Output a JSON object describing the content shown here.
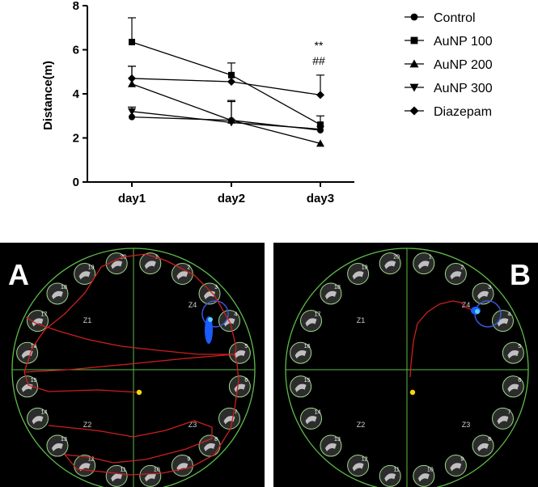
{
  "chart_data": {
    "type": "line",
    "title": "",
    "ylabel": "Distance(m)",
    "xlabel": "",
    "categories": [
      "day1",
      "day2",
      "day3"
    ],
    "ylim": [
      0,
      8
    ],
    "yticks": [
      0,
      2,
      4,
      6,
      8
    ],
    "legend_position": "right",
    "series": [
      {
        "name": "Control",
        "marker": "circle",
        "values": [
          2.95,
          2.8,
          2.35
        ],
        "errors": [
          0.0,
          0.0,
          0.0
        ]
      },
      {
        "name": "AuNP 100",
        "marker": "square",
        "values": [
          6.35,
          4.85,
          2.6
        ],
        "errors": [
          1.1,
          0.55,
          0.0
        ]
      },
      {
        "name": "AuNP 200",
        "marker": "triangle-up",
        "values": [
          4.45,
          2.8,
          1.75
        ],
        "errors": [
          0.8,
          0.9,
          0.0
        ]
      },
      {
        "name": "AuNP 300",
        "marker": "triangle-down",
        "values": [
          3.2,
          2.7,
          2.4
        ],
        "errors": [
          0.2,
          0.95,
          0.6
        ]
      },
      {
        "name": "Diazepam",
        "marker": "diamond",
        "values": [
          4.7,
          4.55,
          3.95
        ],
        "errors": [
          0.55,
          0.0,
          0.9
        ]
      }
    ],
    "annotations": [
      "**",
      "##"
    ]
  },
  "panels": {
    "a": {
      "letter": "A",
      "zones": [
        "Z1",
        "Z2",
        "Z3",
        "Z4"
      ],
      "cup_numbers": [
        "1",
        "2",
        "3",
        "4",
        "5",
        "6",
        "7",
        "8",
        "9",
        "10",
        "11",
        "12",
        "13",
        "14",
        "15",
        "16",
        "17",
        "18",
        "19",
        "20"
      ]
    },
    "b": {
      "letter": "B",
      "zones": [
        "Z1",
        "Z2",
        "Z3",
        "Z4"
      ],
      "cup_numbers": [
        "1",
        "2",
        "3",
        "4",
        "5",
        "6",
        "7",
        "8",
        "9",
        "10",
        "11",
        "12",
        "13",
        "14",
        "15",
        "16",
        "17",
        "18",
        "19",
        "20"
      ]
    },
    "colors": {
      "path": "#cc1f1f",
      "target_ring": "#3a56d8",
      "platform_blob": "#1a5cff",
      "start_dot": "#f5d80b",
      "arena_rim": "#5dbb48",
      "background": "#000000"
    }
  }
}
